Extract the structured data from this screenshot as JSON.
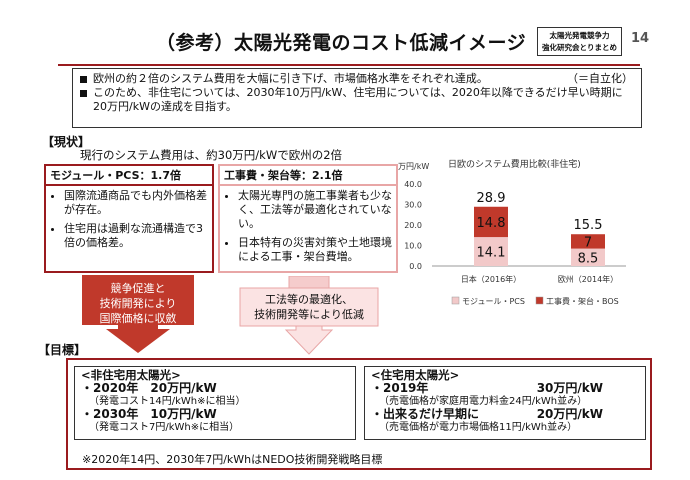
{
  "header": {
    "title": "（参考）太陽光発電のコスト低減イメージ",
    "source_line1": "太陽光発電競争力",
    "source_line2": "強化研究会とりまとめ",
    "page": "14"
  },
  "intro": {
    "bullet1": "欧州の約２倍のシステム費用を大幅に引き下げ、市場価格水準をそれぞれ達成。",
    "bullet1_suffix": "（＝自立化）",
    "bullet2": "このため、非住宅については、2030年10万円/kW、住宅用については、2020年以降できるだけ早い時期に20万円/kWの達成を目指す。"
  },
  "current": {
    "heading": "【現状】",
    "subtitle": "現行のシステム費用は、約30万円/kWで欧州の2倍",
    "module_box": {
      "title": "モジュール・PCS：1.7倍",
      "items": [
        "国際流通商品でも内外価格差が存在。",
        "住宅用は過剰な流通構造で3倍の価格差。"
      ]
    },
    "construction_box": {
      "title": "工事費・架台等：2.1倍",
      "items": [
        "太陽光専門の施工事業者も少なく、工法等が最適化されていない。",
        "日本特有の災害対策や土地環境による工事・架台費増。"
      ]
    },
    "arrow1": [
      "競争促進と",
      "技術開発により",
      "国際価格に収斂"
    ],
    "arrow2": [
      "工法等の最適化、",
      "技術開発等により低減"
    ]
  },
  "chart_data": {
    "type": "bar",
    "title": "日欧のシステム費用比較(非住宅)",
    "ylabel": "万円/kW",
    "ylim": [
      0,
      40
    ],
    "yticks": [
      "0.0",
      "10.0",
      "20.0",
      "30.0",
      "40.0"
    ],
    "categories": [
      "日本（2016年）",
      "欧州（2014年）"
    ],
    "series": [
      {
        "name": "モジュール・PCS",
        "values": [
          14.1,
          8.5
        ],
        "labels": [
          "14.1",
          "8.5"
        ],
        "color": "#f2c9c9"
      },
      {
        "name": "工事費・架台・BOS",
        "values": [
          14.8,
          7.0
        ],
        "labels": [
          "14.8",
          "7"
        ],
        "color": "#c0392b"
      }
    ],
    "totals": [
      "28.9",
      "15.5"
    ],
    "legend": "bottom"
  },
  "goals": {
    "heading": "【目標】",
    "nonres": {
      "title": "<非住宅用太陽光>",
      "line1": "・2020年　20万円/kW",
      "note1": "（発電コスト14円/kWh※に相当）",
      "line2": "・2030年　10万円/kW",
      "note2": "（発電コスト7円/kWh※に相当）"
    },
    "res": {
      "title": "<住宅用太陽光>",
      "line1_label": "・2019年",
      "line1_value": "30万円/kW",
      "note1": "（売電価格が家庭用電力料金24円/kWh並み）",
      "line2_label": "・出来るだけ早期に",
      "line2_value": "20万円/kW",
      "note2": "（売電価格が電力市場価格11円/kWh並み）"
    },
    "footnote": "※2020年14円、2030年7円/kWhはNEDO技術開発戦略目標"
  }
}
